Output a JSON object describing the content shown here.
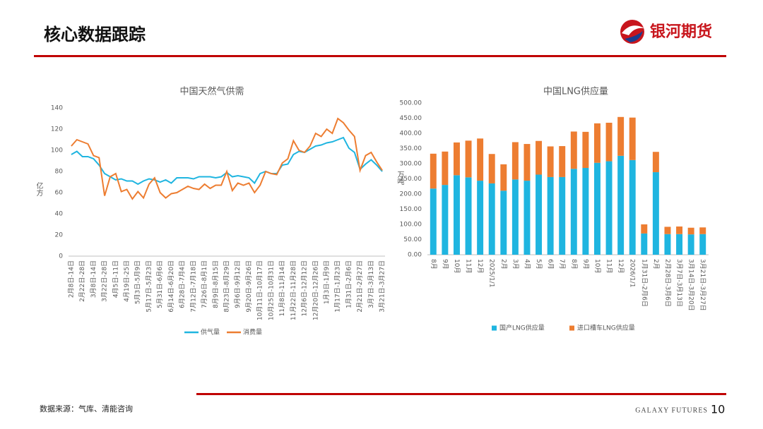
{
  "header": {
    "title": "核心数据跟踪",
    "logo": "银河期货"
  },
  "footer": {
    "source": "数据来源：气库、清能咨询",
    "brand": "GALAXY FUTURES",
    "page": "10"
  },
  "chart_data": [
    {
      "type": "line",
      "title": "中国天然气供需",
      "y_label": "亿方",
      "categories": [
        "2月8日-14日",
        null,
        "2月22日-28日",
        null,
        "3月8日-14日",
        null,
        "3月22日-28日",
        null,
        "4月5日-11日",
        null,
        "4月19日-25日",
        null,
        "5月3日-5月9日",
        null,
        "5月17日-5月23日",
        null,
        "5月31日-6月6日",
        null,
        "6月14日-6月20日",
        null,
        "6月28日-7月4日",
        null,
        "7月12日-7月18日",
        null,
        "7月26日-8月1日",
        null,
        "8月9日-8月15日",
        null,
        "8月23日-8月29日",
        null,
        "9月6日-9月12日",
        null,
        "9月20日-9月26日",
        null,
        "10月11日-10月17日",
        null,
        "10月25日-10月31日",
        null,
        "11月8日-11月14日",
        null,
        "11月22日-11月28日",
        null,
        "12月6日-12月12日",
        null,
        "12月20日-12月26日",
        null,
        "1月3日-1月9日",
        null,
        "1月17日-1月23日",
        null,
        "1月31日-2月6日",
        null,
        "2月21日-2月27日",
        null,
        "3月7日-3月13日",
        null,
        "3月21日-3月27日"
      ],
      "series": [
        {
          "name": "供气量",
          "color": "#1fb5e0",
          "values": [
            96,
            99,
            94,
            94,
            92,
            86,
            78,
            75,
            72,
            73,
            71,
            71,
            68,
            71,
            73,
            72,
            70,
            72,
            69,
            74,
            74,
            74,
            73,
            75,
            75,
            75,
            74,
            75,
            79,
            75,
            76,
            75,
            74,
            69,
            78,
            80,
            78,
            78,
            86,
            87,
            96,
            99,
            98,
            101,
            104,
            105,
            107,
            108,
            110,
            112,
            102,
            98,
            82,
            87,
            91,
            86,
            80
          ]
        },
        {
          "name": "消费量",
          "color": "#ed7d31",
          "values": [
            104,
            110,
            108,
            106,
            95,
            93,
            57,
            75,
            78,
            61,
            63,
            54,
            61,
            55,
            68,
            74,
            60,
            55,
            59,
            60,
            63,
            66,
            64,
            63,
            68,
            64,
            67,
            67,
            80,
            62,
            69,
            67,
            69,
            60,
            67,
            80,
            78,
            77,
            88,
            92,
            109,
            100,
            98,
            104,
            116,
            113,
            120,
            116,
            130,
            126,
            119,
            113,
            81,
            95,
            98,
            89,
            81
          ]
        }
      ],
      "ylim": [
        0,
        140
      ],
      "yticks": [
        0,
        20,
        40,
        60,
        80,
        100,
        120,
        140
      ],
      "legend": "bottom"
    },
    {
      "type": "stacked_bar",
      "title": "中国LNG供应量",
      "y_label": "万吨",
      "categories": [
        "8月",
        "9月",
        "10月",
        "11月",
        "12月",
        "2025/1/1",
        "2月",
        "3月",
        "4月",
        "5月",
        "6月",
        "7月",
        "8月",
        "9月",
        "10月",
        "11月",
        "12月",
        "2026/1/1",
        "1月31日-2月6日",
        "2月",
        "2月28日-3月6日",
        "3月7日-3月13日",
        "3月14日-3月20日",
        "3月21日-3月27日"
      ],
      "series": [
        {
          "name": "国产LNG供应量",
          "color": "#1fb5e0",
          "values": [
            218,
            230,
            262,
            255,
            244,
            235,
            211,
            248,
            244,
            264,
            256,
            256,
            283,
            286,
            303,
            308,
            326,
            312,
            70,
            272,
            68,
            68,
            67,
            68
          ]
        },
        {
          "name": "进口槽车LNG供应量",
          "color": "#ed7d31",
          "values": [
            115,
            110,
            108,
            121,
            139,
            97,
            87,
            123,
            121,
            111,
            101,
            102,
            123,
            119,
            130,
            127,
            128,
            140,
            30,
            67,
            24,
            25,
            22,
            22
          ]
        }
      ],
      "ylim": [
        0,
        500
      ],
      "yticks": [
        {
          "value": 0,
          "label": "0.00"
        },
        {
          "value": 50,
          "label": "50.00"
        },
        {
          "value": 100,
          "label": "100.00"
        },
        {
          "value": 150,
          "label": "150.00"
        },
        {
          "value": 200,
          "label": "200.00"
        },
        {
          "value": 250,
          "label": "250.00"
        },
        {
          "value": 300,
          "label": "300.00"
        },
        {
          "value": 350,
          "label": "350.00"
        },
        {
          "value": 400,
          "label": "400.00"
        },
        {
          "value": 450,
          "label": "450.00"
        },
        {
          "value": 500,
          "label": "500.00"
        }
      ],
      "legend": "bottom"
    }
  ]
}
